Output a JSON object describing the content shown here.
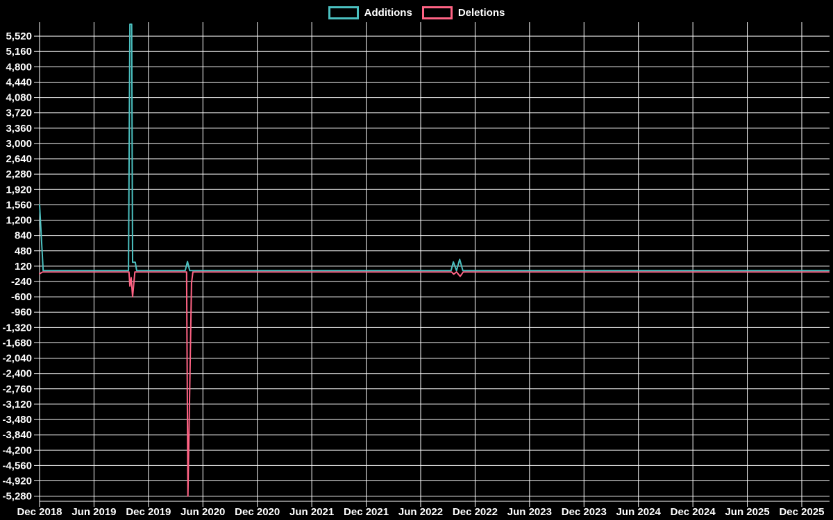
{
  "chart_data": {
    "type": "line",
    "title": "",
    "background": "#000000",
    "grid": true,
    "grid_color": "#ffffff",
    "text_color": "#ffffff",
    "legend_position": "top",
    "x_axis": {
      "unit": "months since Dec 2018",
      "ticks": [
        {
          "m": 0,
          "label": "Dec 2018"
        },
        {
          "m": 6,
          "label": "Jun 2019"
        },
        {
          "m": 12,
          "label": "Dec 2019"
        },
        {
          "m": 18,
          "label": "Jun 2020"
        },
        {
          "m": 24,
          "label": "Dec 2020"
        },
        {
          "m": 30,
          "label": "Jun 2021"
        },
        {
          "m": 36,
          "label": "Dec 2021"
        },
        {
          "m": 42,
          "label": "Jun 2022"
        },
        {
          "m": 48,
          "label": "Dec 2022"
        },
        {
          "m": 54,
          "label": "Jun 2023"
        },
        {
          "m": 60,
          "label": "Dec 2023"
        },
        {
          "m": 66,
          "label": "Jun 2024"
        },
        {
          "m": 72,
          "label": "Dec 2024"
        },
        {
          "m": 78,
          "label": "Jun 2025"
        },
        {
          "m": 84,
          "label": "Dec 2025"
        }
      ]
    },
    "y_axis": {
      "tick_step": 360,
      "ticks": [
        5520,
        5160,
        4800,
        4440,
        4080,
        3720,
        3360,
        3000,
        2640,
        2280,
        1920,
        1560,
        1200,
        840,
        480,
        120,
        -240,
        -600,
        -960,
        -1320,
        -1680,
        -2040,
        -2400,
        -2760,
        -3120,
        -3480,
        -3840,
        -4200,
        -4560,
        -4920,
        -5280
      ]
    },
    "plot_range": {
      "x_months": [
        0,
        87
      ],
      "y": [
        -5400,
        5880
      ]
    },
    "series": [
      {
        "name": "Additions",
        "color": "#4bc0c0",
        "points": [
          [
            0,
            1560
          ],
          [
            0.4,
            15
          ],
          [
            9.8,
            15
          ],
          [
            9.95,
            5800
          ],
          [
            10.15,
            5800
          ],
          [
            10.25,
            210
          ],
          [
            10.55,
            210
          ],
          [
            10.7,
            15
          ],
          [
            16.05,
            15
          ],
          [
            16.3,
            230
          ],
          [
            16.55,
            15
          ],
          [
            45.35,
            15
          ],
          [
            45.6,
            220
          ],
          [
            45.95,
            15
          ],
          [
            46.3,
            280
          ],
          [
            46.65,
            15
          ],
          [
            87,
            15
          ]
        ]
      },
      {
        "name": "Deletions",
        "color": "#ff6384",
        "points": [
          [
            0,
            -60
          ],
          [
            0.35,
            -15
          ],
          [
            9.85,
            -15
          ],
          [
            9.95,
            -350
          ],
          [
            10.1,
            -150
          ],
          [
            10.25,
            -600
          ],
          [
            10.5,
            -15
          ],
          [
            16.2,
            -15
          ],
          [
            16.35,
            -5280
          ],
          [
            16.75,
            -280
          ],
          [
            16.9,
            -15
          ],
          [
            45.4,
            -15
          ],
          [
            45.65,
            -70
          ],
          [
            45.95,
            -15
          ],
          [
            46.35,
            -120
          ],
          [
            46.7,
            -15
          ],
          [
            87,
            -15
          ]
        ]
      }
    ]
  }
}
